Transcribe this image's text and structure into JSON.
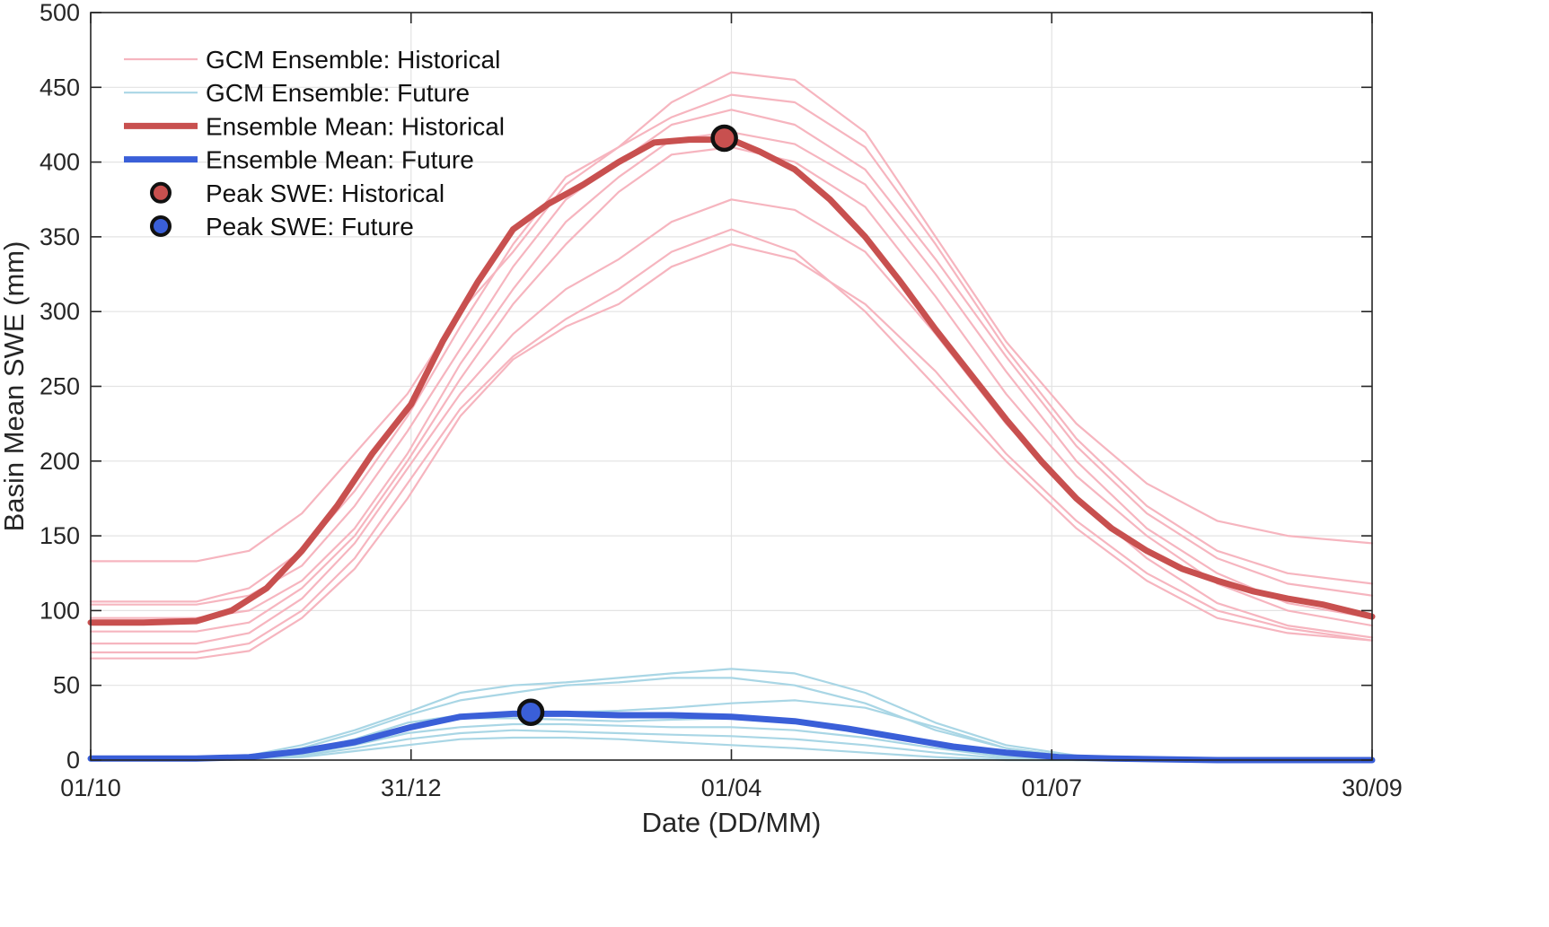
{
  "chart_data": {
    "type": "line",
    "title": "",
    "xlabel": "Date (DD/MM)",
    "ylabel": "Basin Mean SWE (mm)",
    "xlim": [
      0,
      364
    ],
    "ylim": [
      0,
      500
    ],
    "grid": true,
    "legend_location": "top-left",
    "x_ticks": [
      {
        "value": 0,
        "label": "01/10"
      },
      {
        "value": 91,
        "label": "31/12"
      },
      {
        "value": 182,
        "label": "01/04"
      },
      {
        "value": 273,
        "label": "01/07"
      },
      {
        "value": 364,
        "label": "30/09"
      }
    ],
    "y_ticks": [
      0,
      50,
      100,
      150,
      200,
      250,
      300,
      350,
      400,
      450,
      500
    ],
    "legend": [
      {
        "label": "GCM Ensemble: Historical",
        "kind": "thin-line",
        "color": "#f6b5bf"
      },
      {
        "label": "GCM Ensemble: Future",
        "kind": "thin-line",
        "color": "#a9d6e5"
      },
      {
        "label": "Ensemble Mean: Historical",
        "kind": "thick-line",
        "color": "#c8504f"
      },
      {
        "label": "Ensemble Mean: Future",
        "kind": "thick-line",
        "color": "#3a5fd8"
      },
      {
        "label": "Peak SWE: Historical",
        "kind": "marker",
        "color": "#c8504f"
      },
      {
        "label": "Peak SWE: Future",
        "kind": "marker",
        "color": "#3a5fd8"
      }
    ],
    "series": [
      {
        "name": "GCM Ensemble: Historical",
        "group": "hist-members",
        "color": "#f6b5bf",
        "x": [
          0,
          30,
          45,
          60,
          75,
          90,
          105,
          120,
          135,
          150,
          165,
          182,
          200,
          220,
          240,
          260,
          280,
          300,
          320,
          340,
          364
        ],
        "y": [
          133,
          133,
          140,
          165,
          205,
          245,
          300,
          340,
          385,
          410,
          440,
          460,
          455,
          420,
          350,
          280,
          225,
          185,
          160,
          150,
          145
        ]
      },
      {
        "name": "GCM Ensemble: Historical",
        "group": "hist-members",
        "color": "#f6b5bf",
        "x": [
          0,
          30,
          45,
          60,
          75,
          90,
          105,
          120,
          135,
          150,
          165,
          182,
          200,
          220,
          240,
          260,
          280,
          300,
          320,
          340,
          364
        ],
        "y": [
          106,
          106,
          115,
          140,
          180,
          230,
          290,
          345,
          390,
          410,
          430,
          445,
          440,
          410,
          345,
          275,
          215,
          170,
          140,
          125,
          118
        ]
      },
      {
        "name": "GCM Ensemble: Historical",
        "group": "hist-members",
        "color": "#f6b5bf",
        "x": [
          0,
          30,
          45,
          60,
          75,
          90,
          105,
          120,
          135,
          150,
          165,
          182,
          200,
          220,
          240,
          260,
          280,
          300,
          320,
          340,
          364
        ],
        "y": [
          104,
          104,
          110,
          130,
          170,
          220,
          275,
          330,
          375,
          400,
          425,
          435,
          425,
          395,
          335,
          270,
          210,
          165,
          135,
          118,
          110
        ]
      },
      {
        "name": "GCM Ensemble: Historical",
        "group": "hist-members",
        "color": "#f6b5bf",
        "x": [
          0,
          30,
          45,
          60,
          75,
          90,
          105,
          120,
          135,
          150,
          165,
          182,
          200,
          220,
          240,
          260,
          280,
          300,
          320,
          340,
          364
        ],
        "y": [
          95,
          95,
          100,
          120,
          155,
          205,
          265,
          315,
          360,
          390,
          415,
          420,
          412,
          385,
          325,
          260,
          200,
          155,
          125,
          105,
          95
        ]
      },
      {
        "name": "GCM Ensemble: Historical",
        "group": "hist-members",
        "color": "#f6b5bf",
        "x": [
          0,
          30,
          45,
          60,
          75,
          90,
          105,
          120,
          135,
          150,
          165,
          182,
          200,
          220,
          240,
          260,
          280,
          300,
          320,
          340,
          364
        ],
        "y": [
          86,
          86,
          92,
          115,
          150,
          200,
          255,
          305,
          345,
          380,
          405,
          410,
          400,
          370,
          310,
          245,
          190,
          150,
          118,
          100,
          90
        ]
      },
      {
        "name": "GCM Ensemble: Historical",
        "group": "hist-members",
        "color": "#f6b5bf",
        "x": [
          0,
          30,
          45,
          60,
          75,
          90,
          105,
          120,
          135,
          150,
          165,
          182,
          200,
          220,
          240,
          260,
          280,
          300,
          320,
          340,
          364
        ],
        "y": [
          78,
          78,
          85,
          108,
          145,
          195,
          245,
          285,
          315,
          335,
          360,
          375,
          368,
          340,
          285,
          225,
          175,
          135,
          105,
          90,
          82
        ]
      },
      {
        "name": "GCM Ensemble: Historical",
        "group": "hist-members",
        "color": "#f6b5bf",
        "x": [
          0,
          30,
          45,
          60,
          75,
          90,
          105,
          120,
          135,
          150,
          165,
          182,
          200,
          220,
          240,
          260,
          280,
          300,
          320,
          340,
          364
        ],
        "y": [
          72,
          72,
          78,
          100,
          135,
          185,
          235,
          270,
          295,
          315,
          340,
          355,
          340,
          300,
          250,
          200,
          155,
          120,
          95,
          85,
          80
        ]
      },
      {
        "name": "GCM Ensemble: Historical",
        "group": "hist-members",
        "color": "#f6b5bf",
        "x": [
          0,
          30,
          45,
          60,
          75,
          90,
          105,
          120,
          135,
          150,
          165,
          182,
          200,
          220,
          240,
          260,
          280,
          300,
          320,
          340,
          364
        ],
        "y": [
          68,
          68,
          73,
          95,
          128,
          175,
          230,
          268,
          290,
          305,
          330,
          345,
          335,
          305,
          260,
          205,
          160,
          125,
          100,
          88,
          80
        ]
      },
      {
        "name": "GCM Ensemble: Future",
        "group": "fut-members",
        "color": "#a9d6e5",
        "x": [
          0,
          30,
          45,
          60,
          75,
          90,
          105,
          120,
          135,
          150,
          165,
          182,
          200,
          220,
          240,
          260,
          280,
          300,
          320,
          340,
          364
        ],
        "y": [
          1,
          1,
          3,
          10,
          20,
          32,
          45,
          50,
          52,
          55,
          58,
          61,
          58,
          45,
          25,
          10,
          3,
          1,
          0,
          0,
          0
        ]
      },
      {
        "name": "GCM Ensemble: Future",
        "group": "fut-members",
        "color": "#a9d6e5",
        "x": [
          0,
          30,
          45,
          60,
          75,
          90,
          105,
          120,
          135,
          150,
          165,
          182,
          200,
          220,
          240,
          260,
          280,
          300,
          320,
          340,
          364
        ],
        "y": [
          1,
          1,
          2,
          8,
          18,
          30,
          40,
          45,
          50,
          52,
          55,
          55,
          50,
          38,
          20,
          8,
          2,
          0,
          0,
          0,
          0
        ]
      },
      {
        "name": "GCM Ensemble: Future",
        "group": "fut-members",
        "color": "#a9d6e5",
        "x": [
          0,
          30,
          45,
          60,
          75,
          90,
          105,
          120,
          135,
          150,
          165,
          182,
          200,
          220,
          240,
          260,
          280,
          300,
          320,
          340,
          364
        ],
        "y": [
          1,
          1,
          2,
          6,
          14,
          25,
          30,
          32,
          32,
          33,
          35,
          38,
          40,
          35,
          22,
          8,
          2,
          0,
          0,
          0,
          0
        ]
      },
      {
        "name": "GCM Ensemble: Future",
        "group": "fut-members",
        "color": "#a9d6e5",
        "x": [
          0,
          30,
          45,
          60,
          75,
          90,
          105,
          120,
          135,
          150,
          165,
          182,
          200,
          220,
          240,
          260,
          280,
          300,
          320,
          340,
          364
        ],
        "y": [
          1,
          1,
          2,
          5,
          12,
          22,
          28,
          28,
          27,
          26,
          27,
          28,
          25,
          18,
          10,
          3,
          1,
          0,
          0,
          0,
          0
        ]
      },
      {
        "name": "GCM Ensemble: Future",
        "group": "fut-members",
        "color": "#a9d6e5",
        "x": [
          0,
          30,
          45,
          60,
          75,
          90,
          105,
          120,
          135,
          150,
          165,
          182,
          200,
          220,
          240,
          260,
          280,
          300,
          320,
          340,
          364
        ],
        "y": [
          0,
          0,
          1,
          4,
          10,
          18,
          22,
          24,
          24,
          23,
          22,
          22,
          20,
          15,
          8,
          2,
          0,
          0,
          0,
          0,
          0
        ]
      },
      {
        "name": "GCM Ensemble: Future",
        "group": "fut-members",
        "color": "#a9d6e5",
        "x": [
          0,
          30,
          45,
          60,
          75,
          90,
          105,
          120,
          135,
          150,
          165,
          182,
          200,
          220,
          240,
          260,
          280,
          300,
          320,
          340,
          364
        ],
        "y": [
          0,
          0,
          1,
          3,
          8,
          14,
          18,
          20,
          19,
          18,
          17,
          16,
          14,
          10,
          5,
          1,
          0,
          0,
          0,
          0,
          0
        ]
      },
      {
        "name": "GCM Ensemble: Future",
        "group": "fut-members",
        "color": "#a9d6e5",
        "x": [
          0,
          30,
          45,
          60,
          75,
          90,
          105,
          120,
          135,
          150,
          165,
          182,
          200,
          220,
          240,
          260,
          280,
          300,
          320,
          340,
          364
        ],
        "y": [
          0,
          0,
          1,
          2,
          6,
          10,
          14,
          15,
          15,
          14,
          12,
          10,
          8,
          5,
          2,
          0,
          0,
          0,
          0,
          0,
          0
        ]
      },
      {
        "name": "Ensemble Mean: Historical",
        "group": "hist-mean",
        "color": "#c8504f",
        "x": [
          0,
          15,
          30,
          40,
          50,
          60,
          70,
          80,
          91,
          100,
          110,
          120,
          130,
          140,
          150,
          160,
          170,
          182,
          190,
          200,
          210,
          220,
          230,
          240,
          250,
          260,
          270,
          280,
          290,
          300,
          310,
          320,
          330,
          340,
          350,
          364
        ],
        "y": [
          92,
          92,
          93,
          100,
          115,
          140,
          170,
          205,
          238,
          280,
          320,
          355,
          372,
          385,
          400,
          413,
          415,
          415,
          407,
          395,
          375,
          350,
          320,
          288,
          258,
          228,
          200,
          175,
          155,
          140,
          128,
          120,
          113,
          108,
          104,
          96
        ]
      },
      {
        "name": "Ensemble Mean: Future",
        "group": "fut-mean",
        "color": "#3a5fd8",
        "x": [
          0,
          30,
          45,
          60,
          75,
          91,
          105,
          120,
          135,
          150,
          165,
          182,
          200,
          215,
          230,
          245,
          260,
          275,
          290,
          320,
          364
        ],
        "y": [
          1,
          1,
          2,
          6,
          12,
          22,
          29,
          31,
          31,
          30,
          30,
          29,
          26,
          21,
          15,
          9,
          5,
          2,
          1,
          0,
          0
        ]
      }
    ],
    "peaks": [
      {
        "label": "Peak SWE: Historical",
        "x": 180,
        "y": 416,
        "color": "#c8504f"
      },
      {
        "label": "Peak SWE: Future",
        "x": 125,
        "y": 32,
        "color": "#3a5fd8"
      }
    ]
  }
}
